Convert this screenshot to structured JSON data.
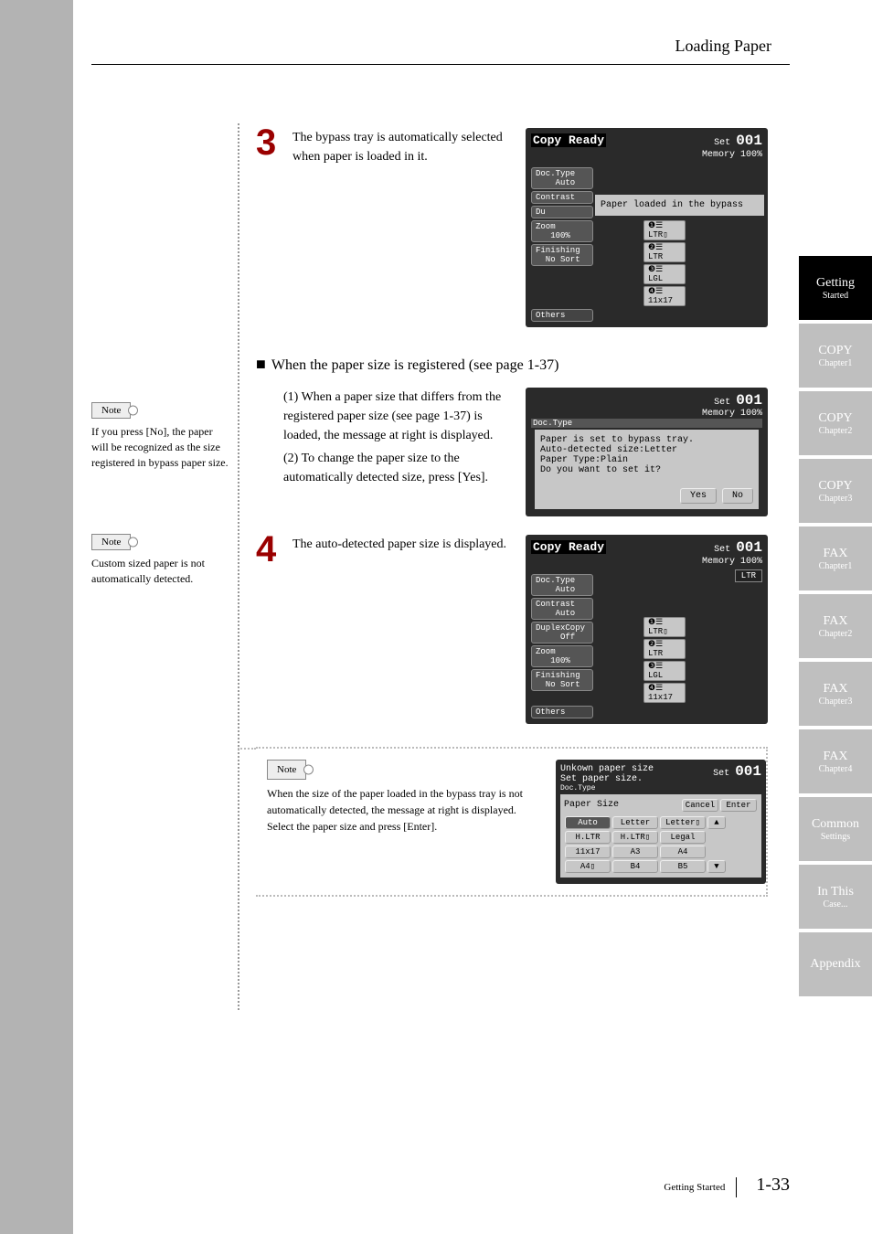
{
  "header": {
    "title": "Loading Paper"
  },
  "tabs": [
    {
      "label": "Getting",
      "sub": "Started",
      "cls": "active"
    },
    {
      "label": "COPY",
      "sub": "Chapter1",
      "cls": "dim"
    },
    {
      "label": "COPY",
      "sub": "Chapter2",
      "cls": "dim"
    },
    {
      "label": "COPY",
      "sub": "Chapter3",
      "cls": "dim"
    },
    {
      "label": "FAX",
      "sub": "Chapter1",
      "cls": "dim"
    },
    {
      "label": "FAX",
      "sub": "Chapter2",
      "cls": "dim"
    },
    {
      "label": "FAX",
      "sub": "Chapter3",
      "cls": "dim"
    },
    {
      "label": "FAX",
      "sub": "Chapter4",
      "cls": "dim"
    },
    {
      "label": "Common",
      "sub": "Settings",
      "cls": "dim"
    },
    {
      "label": "In This",
      "sub": "Case...",
      "cls": "dim"
    },
    {
      "label": "Appendix",
      "sub": "",
      "cls": "dim"
    }
  ],
  "leftNotes": [
    {
      "label": "Note",
      "text": "If you press [No], the paper will be recognized as the size registered in bypass paper size."
    },
    {
      "label": "Note",
      "text": "Custom sized paper is not automatically detected."
    }
  ],
  "step3": {
    "num": "3",
    "text": "The bypass tray is automatically selected when paper is loaded in it.",
    "lcd": {
      "title": "Copy Ready",
      "set": "Set",
      "count": "001",
      "memory": "Memory   100%",
      "leftBtns": [
        "Doc.Type\n    Auto",
        "Contrast",
        "Du",
        "Zoom\n   100%",
        "Finishing\n  No Sort"
      ],
      "others": "Others",
      "msg": "Paper loaded in the bypass",
      "trays": [
        "❶☰  LTR▯",
        "❷☰  LTR",
        "❸☰  LGL",
        "❹☰  11x17"
      ]
    }
  },
  "section": "When the paper size is registered (see page 1-37)",
  "sub1": {
    "a": "(1) When a paper size that differs from the registered paper size (see page 1-37) is loaded, the message at right is displayed.",
    "b": "(2) To change the paper size to the automatically detected size, press [Yes].",
    "lcd": {
      "set": "Set",
      "count": "001",
      "memory": "Memory   100%",
      "doctype": "Doc.Type",
      "msg1": "Paper is set to bypass tray.",
      "msg2": "Auto-detected size:Letter",
      "msg3": "Paper Type:Plain",
      "msg4": "Do you want to set it?",
      "yes": "Yes",
      "no": "No"
    }
  },
  "step4": {
    "num": "4",
    "text": "The auto-detected paper size is displayed.",
    "lcd": {
      "title": "Copy Ready",
      "set": "Set",
      "count": "001",
      "memory": "Memory   100%",
      "leftBtns": [
        "Doc.Type\n    Auto",
        "Contrast\n    Auto",
        "DuplexCopy\n     Off",
        "Zoom\n   100%",
        "Finishing\n  No Sort"
      ],
      "others": "Others",
      "size": "LTR",
      "trays": [
        "❶☰  LTR▯",
        "❷☰  LTR",
        "❸☰  LGL",
        "❹☰  11x17"
      ]
    }
  },
  "insetNote": {
    "label": "Note",
    "text1": "When the size of the paper loaded in the bypass tray is not automatically detected, the message at right is displayed.",
    "text2": "Select the paper size and press [Enter].",
    "lcd": {
      "l1": "Unkown paper size",
      "l2": "Set paper size.",
      "l3": "Doc.Type",
      "paper": "Paper Size",
      "set": "Set",
      "count": "001",
      "cancel": "Cancel",
      "enter": "Enter",
      "up": "▲",
      "down": "▼",
      "grid": [
        [
          "Auto",
          "Letter",
          "Letter▯"
        ],
        [
          "H.LTR",
          "H.LTR▯",
          "Legal"
        ],
        [
          "11x17",
          "A3",
          "A4"
        ],
        [
          "A4▯",
          "B4",
          "B5"
        ]
      ]
    }
  },
  "footer": {
    "label": "Getting Started",
    "page": "1-33"
  }
}
